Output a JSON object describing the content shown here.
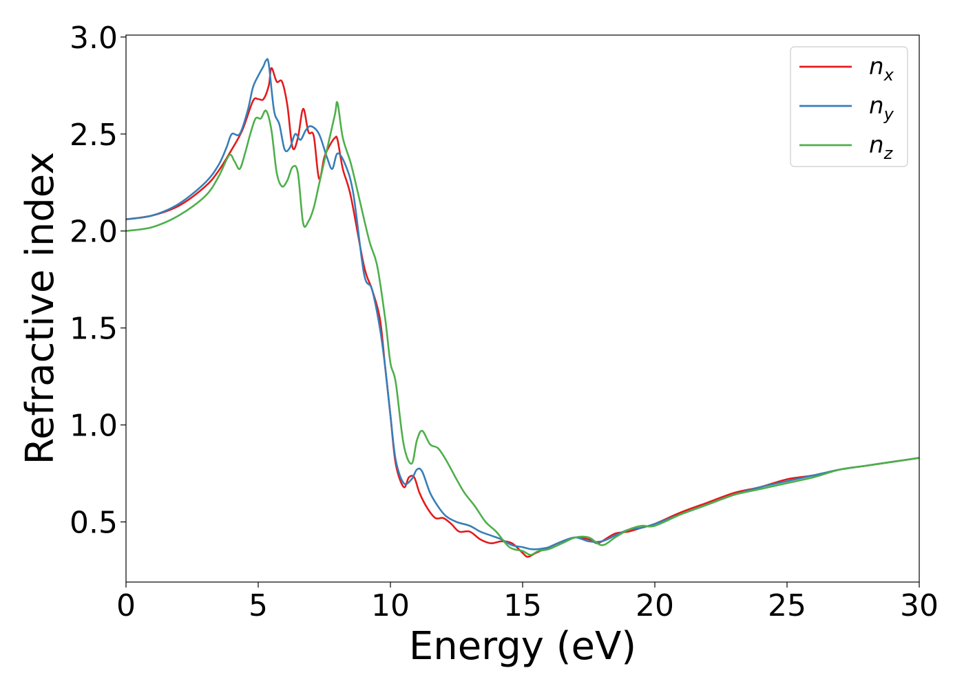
{
  "chart_data": {
    "type": "line",
    "title": "",
    "xlabel": "Energy (eV)",
    "ylabel": "Refractive index",
    "xlim": [
      0,
      30
    ],
    "ylim": [
      0.19,
      3.01
    ],
    "xticks": [
      0,
      5,
      10,
      15,
      20,
      25,
      30
    ],
    "xtick_labels": [
      "0",
      "5",
      "10",
      "15",
      "20",
      "25",
      "30"
    ],
    "yticks": [
      0.5,
      1.0,
      1.5,
      2.0,
      2.5,
      3.0
    ],
    "ytick_labels": [
      "0.5",
      "1.0",
      "1.5",
      "2.0",
      "2.5",
      "3.0"
    ],
    "grid": false,
    "legend_position": "top-right",
    "series": [
      {
        "name": "n",
        "subscript": "x",
        "color": "#e41a1c",
        "x": [
          0,
          1,
          2,
          3,
          3.5,
          4,
          4.4,
          4.8,
          5.0,
          5.2,
          5.4,
          5.5,
          5.7,
          5.9,
          6.1,
          6.3,
          6.5,
          6.7,
          6.9,
          7.1,
          7.3,
          7.5,
          7.7,
          7.9,
          8.0,
          8.2,
          8.5,
          9.0,
          9.3,
          9.6,
          9.8,
          10.0,
          10.2,
          10.5,
          10.7,
          10.9,
          11.1,
          11.4,
          11.7,
          12.0,
          12.3,
          12.6,
          13.0,
          13.4,
          13.8,
          14.2,
          14.6,
          15.0,
          15.2,
          15.5,
          16.0,
          16.5,
          17.0,
          17.5,
          17.8,
          18.0,
          18.5,
          19.0,
          19.5,
          20,
          21,
          22,
          23,
          24,
          25,
          26,
          27,
          28,
          29,
          30
        ],
        "y": [
          2.06,
          2.08,
          2.13,
          2.23,
          2.31,
          2.42,
          2.52,
          2.67,
          2.68,
          2.68,
          2.75,
          2.84,
          2.77,
          2.77,
          2.65,
          2.43,
          2.48,
          2.63,
          2.51,
          2.49,
          2.27,
          2.38,
          2.44,
          2.48,
          2.47,
          2.32,
          2.18,
          1.82,
          1.7,
          1.55,
          1.3,
          1.05,
          0.8,
          0.68,
          0.73,
          0.73,
          0.65,
          0.57,
          0.52,
          0.52,
          0.49,
          0.45,
          0.45,
          0.41,
          0.39,
          0.4,
          0.39,
          0.34,
          0.32,
          0.34,
          0.37,
          0.4,
          0.42,
          0.41,
          0.39,
          0.4,
          0.44,
          0.45,
          0.47,
          0.49,
          0.55,
          0.6,
          0.65,
          0.68,
          0.72,
          0.74,
          0.77,
          0.79,
          0.81,
          0.83
        ]
      },
      {
        "name": "n",
        "subscript": "y",
        "color": "#377eb8",
        "x": [
          0,
          1,
          2,
          3,
          3.5,
          3.8,
          4.0,
          4.3,
          4.6,
          4.8,
          5.0,
          5.2,
          5.3,
          5.4,
          5.6,
          5.8,
          6.0,
          6.2,
          6.4,
          6.6,
          6.8,
          7.0,
          7.3,
          7.6,
          7.8,
          8.0,
          8.3,
          8.6,
          9.0,
          9.3,
          9.6,
          9.8,
          10.0,
          10.2,
          10.5,
          10.8,
          11.0,
          11.2,
          11.5,
          11.8,
          12.1,
          12.5,
          13.0,
          13.4,
          13.8,
          14.2,
          14.6,
          15.0,
          15.3,
          15.6,
          16.0,
          16.5,
          17.0,
          17.5,
          18.0,
          18.5,
          19.0,
          19.5,
          20,
          21,
          22,
          23,
          24,
          25,
          26,
          27,
          28,
          29,
          30
        ],
        "y": [
          2.06,
          2.08,
          2.14,
          2.25,
          2.34,
          2.43,
          2.5,
          2.5,
          2.62,
          2.74,
          2.8,
          2.85,
          2.88,
          2.86,
          2.62,
          2.55,
          2.42,
          2.43,
          2.5,
          2.47,
          2.52,
          2.54,
          2.5,
          2.38,
          2.32,
          2.4,
          2.34,
          2.19,
          1.78,
          1.7,
          1.5,
          1.3,
          1.05,
          0.82,
          0.7,
          0.72,
          0.77,
          0.76,
          0.65,
          0.58,
          0.53,
          0.5,
          0.48,
          0.45,
          0.43,
          0.41,
          0.38,
          0.37,
          0.36,
          0.36,
          0.37,
          0.4,
          0.42,
          0.4,
          0.4,
          0.43,
          0.46,
          0.47,
          0.49,
          0.54,
          0.59,
          0.64,
          0.68,
          0.71,
          0.74,
          0.77,
          0.79,
          0.81,
          0.83
        ]
      },
      {
        "name": "n",
        "subscript": "z",
        "color": "#4daf4a",
        "x": [
          0,
          1,
          2,
          3,
          3.5,
          3.9,
          4.1,
          4.3,
          4.5,
          4.7,
          4.9,
          5.1,
          5.3,
          5.5,
          5.7,
          5.9,
          6.1,
          6.3,
          6.5,
          6.7,
          6.9,
          7.1,
          7.3,
          7.6,
          7.9,
          8.0,
          8.2,
          8.5,
          8.8,
          9.2,
          9.5,
          9.8,
          10.0,
          10.2,
          10.5,
          10.8,
          11.0,
          11.2,
          11.5,
          11.8,
          12.1,
          12.5,
          12.8,
          13.2,
          13.6,
          14.0,
          14.5,
          15.0,
          15.3,
          15.6,
          16.0,
          16.5,
          17.0,
          17.5,
          18.0,
          18.5,
          19.0,
          19.5,
          20,
          21,
          22,
          23,
          24,
          25,
          26,
          27,
          28,
          29,
          30
        ],
        "y": [
          2.0,
          2.02,
          2.08,
          2.18,
          2.28,
          2.39,
          2.36,
          2.32,
          2.4,
          2.5,
          2.58,
          2.58,
          2.62,
          2.52,
          2.3,
          2.23,
          2.26,
          2.33,
          2.3,
          2.04,
          2.05,
          2.12,
          2.24,
          2.42,
          2.6,
          2.66,
          2.48,
          2.35,
          2.18,
          1.95,
          1.82,
          1.55,
          1.32,
          1.22,
          0.9,
          0.8,
          0.92,
          0.97,
          0.9,
          0.88,
          0.82,
          0.72,
          0.65,
          0.58,
          0.5,
          0.45,
          0.37,
          0.35,
          0.33,
          0.35,
          0.36,
          0.39,
          0.42,
          0.42,
          0.38,
          0.42,
          0.46,
          0.48,
          0.48,
          0.54,
          0.59,
          0.64,
          0.67,
          0.7,
          0.73,
          0.77,
          0.79,
          0.81,
          0.83
        ]
      }
    ]
  }
}
